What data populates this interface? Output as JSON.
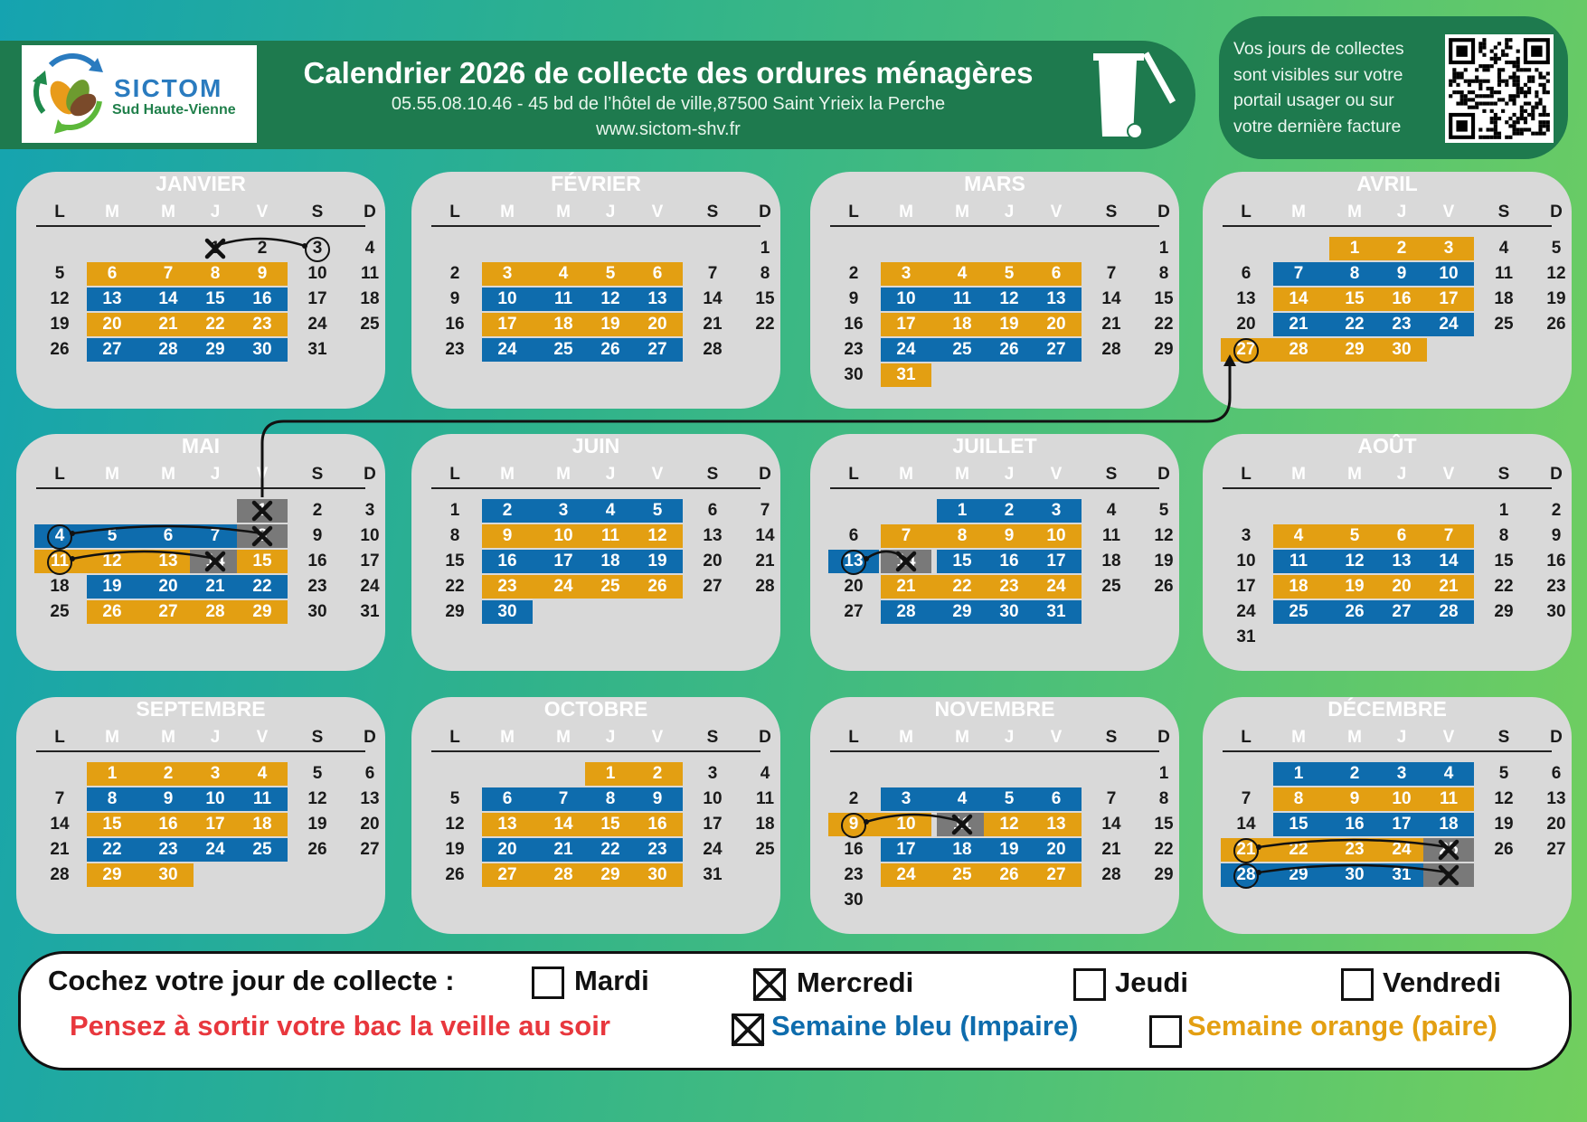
{
  "header": {
    "logo_name": "SICTOM",
    "logo_sub": "Sud Haute-Vienne",
    "title": "Calendrier 2026 de collecte des ordures ménagères",
    "address": "05.55.08.10.46 - 45 bd de l’hôtel de ville,87500 Saint Yrieix la Perche",
    "website": "www.sictom-shv.fr",
    "portal_info": [
      "Vos jours de collectes",
      "sont visibles sur votre",
      "portail usager ou sur",
      "votre dernière facture"
    ]
  },
  "weekdays": [
    "L",
    "M",
    "M",
    "J",
    "V",
    "S",
    "D"
  ],
  "months": [
    {
      "name": "JANVIER",
      "offset": 3,
      "days": 31,
      "bands": [
        {
          "row": 1,
          "from": 1,
          "to": 4,
          "c": "o"
        },
        {
          "row": 2,
          "from": 1,
          "to": 4,
          "c": "b"
        },
        {
          "row": 3,
          "from": 1,
          "to": 4,
          "c": "o"
        },
        {
          "row": 4,
          "from": 1,
          "to": 4,
          "c": "b"
        }
      ],
      "marks": [
        {
          "row": 0,
          "col": 3,
          "t": "x"
        },
        {
          "row": 0,
          "col": 5,
          "t": "ring"
        }
      ]
    },
    {
      "name": "FÉVRIER",
      "offset": 6,
      "days": 28,
      "bands": [
        {
          "row": 1,
          "from": 1,
          "to": 4,
          "c": "o"
        },
        {
          "row": 2,
          "from": 1,
          "to": 4,
          "c": "b"
        },
        {
          "row": 3,
          "from": 1,
          "to": 4,
          "c": "o"
        },
        {
          "row": 4,
          "from": 1,
          "to": 4,
          "c": "b"
        }
      ],
      "marks": []
    },
    {
      "name": "MARS",
      "offset": 6,
      "days": 31,
      "bands": [
        {
          "row": 1,
          "from": 1,
          "to": 4,
          "c": "o"
        },
        {
          "row": 2,
          "from": 1,
          "to": 4,
          "c": "b"
        },
        {
          "row": 3,
          "from": 1,
          "to": 4,
          "c": "o"
        },
        {
          "row": 4,
          "from": 1,
          "to": 4,
          "c": "b"
        },
        {
          "row": 5,
          "from": 1,
          "to": 1,
          "c": "o"
        }
      ],
      "marks": []
    },
    {
      "name": "AVRIL",
      "offset": 2,
      "days": 30,
      "bands": [
        {
          "row": 0,
          "from": 2,
          "to": 4,
          "c": "o"
        },
        {
          "row": 1,
          "from": 1,
          "to": 4,
          "c": "b"
        },
        {
          "row": 2,
          "from": 1,
          "to": 4,
          "c": "o"
        },
        {
          "row": 3,
          "from": 1,
          "to": 4,
          "c": "b"
        },
        {
          "row": 4,
          "from": 0,
          "to": 3,
          "c": "o"
        }
      ],
      "marks": [
        {
          "row": 4,
          "col": 0,
          "t": "ring"
        }
      ]
    },
    {
      "name": "MAI",
      "offset": 4,
      "days": 31,
      "bands": [
        {
          "row": 0,
          "from": 4,
          "to": 4,
          "c": "g"
        },
        {
          "row": 1,
          "from": 0,
          "to": 3,
          "c": "b"
        },
        {
          "row": 1,
          "from": 4,
          "to": 4,
          "c": "g"
        },
        {
          "row": 2,
          "from": 0,
          "to": 2,
          "c": "o"
        },
        {
          "row": 2,
          "from": 3,
          "to": 3,
          "c": "g"
        },
        {
          "row": 2,
          "from": 4,
          "to": 4,
          "c": "o"
        },
        {
          "row": 3,
          "from": 1,
          "to": 4,
          "c": "b"
        },
        {
          "row": 4,
          "from": 1,
          "to": 4,
          "c": "o"
        }
      ],
      "marks": [
        {
          "row": 0,
          "col": 4,
          "t": "x"
        },
        {
          "row": 1,
          "col": 4,
          "t": "x"
        },
        {
          "row": 2,
          "col": 3,
          "t": "x"
        },
        {
          "row": 1,
          "col": 0,
          "t": "ring"
        },
        {
          "row": 2,
          "col": 0,
          "t": "ring"
        }
      ]
    },
    {
      "name": "JUIN",
      "offset": 0,
      "days": 30,
      "bands": [
        {
          "row": 0,
          "from": 1,
          "to": 4,
          "c": "b"
        },
        {
          "row": 1,
          "from": 1,
          "to": 4,
          "c": "o"
        },
        {
          "row": 2,
          "from": 1,
          "to": 4,
          "c": "b"
        },
        {
          "row": 3,
          "from": 1,
          "to": 4,
          "c": "o"
        },
        {
          "row": 4,
          "from": 1,
          "to": 1,
          "c": "b"
        }
      ],
      "marks": []
    },
    {
      "name": "JUILLET",
      "offset": 2,
      "days": 31,
      "bands": [
        {
          "row": 0,
          "from": 2,
          "to": 4,
          "c": "b"
        },
        {
          "row": 1,
          "from": 1,
          "to": 4,
          "c": "o"
        },
        {
          "row": 2,
          "from": 0,
          "to": 0,
          "c": "b"
        },
        {
          "row": 2,
          "from": 1,
          "to": 1,
          "c": "g"
        },
        {
          "row": 2,
          "from": 2,
          "to": 4,
          "c": "b"
        },
        {
          "row": 3,
          "from": 1,
          "to": 4,
          "c": "o"
        },
        {
          "row": 4,
          "from": 1,
          "to": 4,
          "c": "b"
        }
      ],
      "marks": [
        {
          "row": 2,
          "col": 1,
          "t": "x"
        },
        {
          "row": 2,
          "col": 0,
          "t": "ring"
        }
      ]
    },
    {
      "name": "AOÛT",
      "offset": 5,
      "days": 31,
      "bands": [
        {
          "row": 1,
          "from": 1,
          "to": 4,
          "c": "o"
        },
        {
          "row": 2,
          "from": 1,
          "to": 4,
          "c": "b"
        },
        {
          "row": 3,
          "from": 1,
          "to": 4,
          "c": "o"
        },
        {
          "row": 4,
          "from": 1,
          "to": 4,
          "c": "b"
        }
      ],
      "marks": []
    },
    {
      "name": "SEPTEMBRE",
      "offset": 1,
      "days": 30,
      "bands": [
        {
          "row": 0,
          "from": 1,
          "to": 4,
          "c": "o"
        },
        {
          "row": 1,
          "from": 1,
          "to": 4,
          "c": "b"
        },
        {
          "row": 2,
          "from": 1,
          "to": 4,
          "c": "o"
        },
        {
          "row": 3,
          "from": 1,
          "to": 4,
          "c": "b"
        },
        {
          "row": 4,
          "from": 1,
          "to": 2,
          "c": "o"
        }
      ],
      "marks": []
    },
    {
      "name": "OCTOBRE",
      "offset": 3,
      "days": 31,
      "bands": [
        {
          "row": 0,
          "from": 3,
          "to": 4,
          "c": "o"
        },
        {
          "row": 1,
          "from": 1,
          "to": 4,
          "c": "b"
        },
        {
          "row": 2,
          "from": 1,
          "to": 4,
          "c": "o"
        },
        {
          "row": 3,
          "from": 1,
          "to": 4,
          "c": "b"
        },
        {
          "row": 4,
          "from": 1,
          "to": 4,
          "c": "o"
        }
      ],
      "marks": []
    },
    {
      "name": "NOVEMBRE",
      "offset": 6,
      "days": 30,
      "bands": [
        {
          "row": 1,
          "from": 1,
          "to": 4,
          "c": "b"
        },
        {
          "row": 2,
          "from": 0,
          "to": 1,
          "c": "o"
        },
        {
          "row": 2,
          "from": 2,
          "to": 2,
          "c": "g"
        },
        {
          "row": 2,
          "from": 3,
          "to": 4,
          "c": "o"
        },
        {
          "row": 3,
          "from": 1,
          "to": 4,
          "c": "b"
        },
        {
          "row": 4,
          "from": 1,
          "to": 4,
          "c": "o"
        }
      ],
      "marks": [
        {
          "row": 2,
          "col": 2,
          "t": "x"
        },
        {
          "row": 2,
          "col": 0,
          "t": "ring"
        }
      ]
    },
    {
      "name": "DÉCEMBRE",
      "offset": 1,
      "days": 31,
      "bands": [
        {
          "row": 0,
          "from": 1,
          "to": 4,
          "c": "b"
        },
        {
          "row": 1,
          "from": 1,
          "to": 4,
          "c": "o"
        },
        {
          "row": 2,
          "from": 1,
          "to": 4,
          "c": "b"
        },
        {
          "row": 3,
          "from": 0,
          "to": 3,
          "c": "o"
        },
        {
          "row": 3,
          "from": 4,
          "to": 4,
          "c": "g"
        },
        {
          "row": 4,
          "from": 0,
          "to": 3,
          "c": "b"
        },
        {
          "row": 4,
          "from": 4,
          "to": 4,
          "c": "g"
        }
      ],
      "marks": [
        {
          "row": 3,
          "col": 4,
          "t": "x"
        },
        {
          "row": 4,
          "col": 4,
          "t": "x"
        },
        {
          "row": 3,
          "col": 0,
          "t": "ring"
        },
        {
          "row": 4,
          "col": 0,
          "t": "ring"
        }
      ]
    }
  ],
  "footer": {
    "prompt": "Cochez votre jour de collecte :",
    "day_options": [
      {
        "label": "Mardi",
        "checked": false
      },
      {
        "label": "Mercredi",
        "checked": true
      },
      {
        "label": "Jeudi",
        "checked": false
      },
      {
        "label": "Vendredi",
        "checked": false
      }
    ],
    "reminder": "Pensez à sortir votre bac la veille au soir",
    "week_options": [
      {
        "label": "Semaine bleu (Impaire)",
        "checked": true
      },
      {
        "label": "Semaine orange (paire)",
        "checked": false
      }
    ]
  },
  "colors": {
    "orange": "#e39f12",
    "blue": "#0e6cad",
    "grey": "#797979",
    "header_green": "#1e7a4e",
    "reminder_red": "#e8373d",
    "card": "#d9d9d9"
  }
}
